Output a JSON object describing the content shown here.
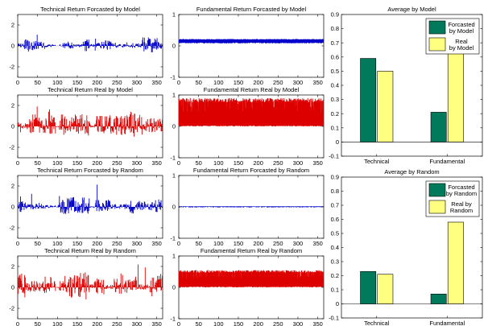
{
  "chart_data": [
    {
      "type": "line",
      "title": "Technical Return Forcasted by Model",
      "x_range": [
        0,
        365
      ],
      "xlim": [
        0,
        365
      ],
      "ylim": [
        -3,
        3
      ],
      "x_ticks": [
        0,
        50,
        100,
        150,
        200,
        250,
        300,
        350
      ],
      "y_ticks": [
        -2,
        0,
        2
      ],
      "series": [
        {
          "color": "#0000cc",
          "pattern": "volatile_return",
          "amplitude": 1.4,
          "seed": 11
        }
      ]
    },
    {
      "type": "line",
      "title": "Fundamental Return Forcasted by Model",
      "x_range": [
        0,
        365
      ],
      "xlim": [
        0,
        365
      ],
      "ylim": [
        -1,
        1
      ],
      "x_ticks": [
        0,
        50,
        100,
        150,
        200,
        250,
        300,
        350
      ],
      "y_ticks": [
        -1,
        0,
        1
      ],
      "series": [
        {
          "color": "#0000cc",
          "pattern": "band",
          "low": 0.08,
          "high": 0.22,
          "seed": 12
        }
      ]
    },
    {
      "type": "line",
      "title": "Technical Return Real by Model",
      "x_range": [
        0,
        365
      ],
      "xlim": [
        0,
        365
      ],
      "ylim": [
        -3,
        3
      ],
      "x_ticks": [
        0,
        50,
        100,
        150,
        200,
        250,
        300,
        350
      ],
      "y_ticks": [
        -2,
        0,
        2
      ],
      "series": [
        {
          "color": "#dd0000",
          "pattern": "volatile_return",
          "amplitude": 2.2,
          "seed": 21
        }
      ]
    },
    {
      "type": "line",
      "title": "Fundamental Return Real by Model",
      "x_range": [
        0,
        365
      ],
      "xlim": [
        0,
        365
      ],
      "ylim": [
        -1,
        1
      ],
      "x_ticks": [
        0,
        50,
        100,
        150,
        200,
        250,
        300,
        350
      ],
      "y_ticks": [
        -1,
        0,
        1
      ],
      "series": [
        {
          "color": "#dd0000",
          "pattern": "band",
          "low": 0.0,
          "high": 0.9,
          "seed": 22
        }
      ]
    },
    {
      "type": "line",
      "title": "Technical Return Forcasted by Random",
      "x_range": [
        0,
        365
      ],
      "xlim": [
        0,
        365
      ],
      "ylim": [
        -3,
        3
      ],
      "x_ticks": [
        0,
        50,
        100,
        150,
        200,
        250,
        300,
        350
      ],
      "y_ticks": [
        -2,
        0,
        2
      ],
      "series": [
        {
          "color": "#0000cc",
          "pattern": "volatile_return",
          "amplitude": 1.6,
          "seed": 31
        }
      ]
    },
    {
      "type": "line",
      "title": "Fundamental Return Forcasted by Random",
      "x_range": [
        0,
        365
      ],
      "xlim": [
        0,
        365
      ],
      "ylim": [
        -1,
        1
      ],
      "x_ticks": [
        0,
        50,
        100,
        150,
        200,
        250,
        300,
        350
      ],
      "y_ticks": [
        -1,
        0,
        1
      ],
      "series": [
        {
          "color": "#0000cc",
          "pattern": "band",
          "low": -0.02,
          "high": 0.02,
          "seed": 32
        }
      ]
    },
    {
      "type": "line",
      "title": "Technical Return Real by Random",
      "x_range": [
        0,
        365
      ],
      "xlim": [
        0,
        365
      ],
      "ylim": [
        -3,
        3
      ],
      "x_ticks": [
        0,
        50,
        100,
        150,
        200,
        250,
        300,
        350
      ],
      "y_ticks": [
        -2,
        0,
        2
      ],
      "series": [
        {
          "color": "#dd0000",
          "pattern": "volatile_return",
          "amplitude": 2.2,
          "seed": 41
        }
      ]
    },
    {
      "type": "line",
      "title": "Fundamental Return Real by Random",
      "x_range": [
        0,
        365
      ],
      "xlim": [
        0,
        365
      ],
      "ylim": [
        -1,
        1
      ],
      "x_ticks": [
        0,
        50,
        100,
        150,
        200,
        250,
        300,
        350
      ],
      "y_ticks": [
        -1,
        0,
        1
      ],
      "series": [
        {
          "color": "#dd0000",
          "pattern": "band",
          "low": 0.0,
          "high": 0.55,
          "seed": 42
        }
      ]
    },
    {
      "type": "bar",
      "title": "Average by Model",
      "categories": [
        "Technical",
        "Fundamental"
      ],
      "ylim": [
        -0.1,
        0.9
      ],
      "y_ticks": [
        -0.1,
        0,
        0.1,
        0.2,
        0.3,
        0.4,
        0.5,
        0.6,
        0.7,
        0.8,
        0.9
      ],
      "legend_placement": "top-right",
      "series": [
        {
          "name": "Forcasted by Model",
          "legend_lines": [
            "Forcasted",
            "by Model"
          ],
          "color": "#007a5a",
          "values": [
            0.59,
            0.21
          ]
        },
        {
          "name": "Real by Model",
          "legend_lines": [
            "Real",
            "by Model"
          ],
          "color": "#ffff80",
          "values": [
            0.5,
            0.63
          ]
        }
      ]
    },
    {
      "type": "bar",
      "title": "Average by Random",
      "categories": [
        "Technical",
        "Fundamental"
      ],
      "ylim": [
        -0.1,
        0.9
      ],
      "y_ticks": [
        -0.1,
        0,
        0.1,
        0.2,
        0.3,
        0.4,
        0.5,
        0.6,
        0.7,
        0.8,
        0.9
      ],
      "legend_placement": "top-right",
      "series": [
        {
          "name": "Forcasted by Random",
          "legend_lines": [
            "Forcasted",
            "by Random"
          ],
          "color": "#007a5a",
          "values": [
            0.23,
            0.07
          ]
        },
        {
          "name": "Real by Random",
          "legend_lines": [
            "Real by",
            "Random"
          ],
          "color": "#ffff80",
          "values": [
            0.21,
            0.58
          ]
        }
      ]
    }
  ]
}
